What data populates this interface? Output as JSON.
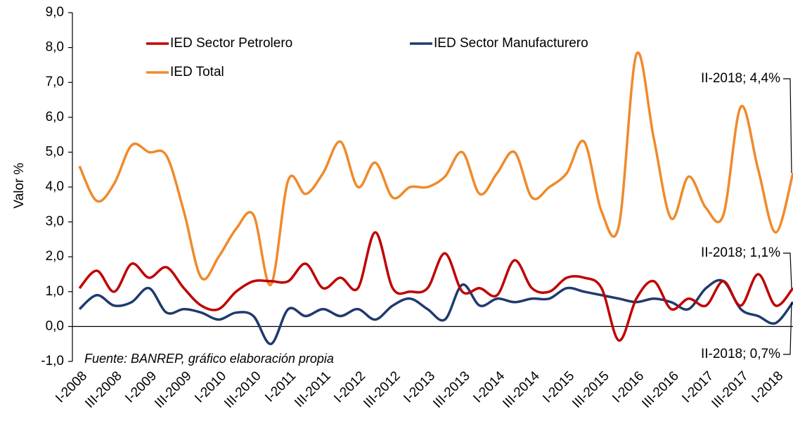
{
  "chart_data": {
    "type": "line",
    "y_label": "Valor %",
    "source": "Fuente: BANREP, gráfico elaboración propia",
    "categories": [
      "I-2008",
      null,
      "III-2008",
      null,
      "I-2009",
      null,
      "III-2009",
      null,
      "I-2010",
      null,
      "III-2010",
      null,
      "I-2011",
      null,
      "III-2011",
      null,
      "I-2012",
      null,
      "III-2012",
      null,
      "I-2013",
      null,
      "III-2013",
      null,
      "I-2014",
      null,
      "III-2014",
      null,
      "I-2015",
      null,
      "III-2015",
      null,
      "I-2016",
      null,
      "III-2016",
      null,
      "I-2017",
      null,
      "III-2017",
      null,
      "I-2018",
      null
    ],
    "series": [
      {
        "name": "IED Sector Petrolero",
        "color": "#c00000",
        "values": [
          1.1,
          1.6,
          1.0,
          1.8,
          1.4,
          1.7,
          1.1,
          0.6,
          0.5,
          1.0,
          1.3,
          1.3,
          1.3,
          1.8,
          1.1,
          1.4,
          1.1,
          2.7,
          1.1,
          1.0,
          1.1,
          2.1,
          1.0,
          1.1,
          0.9,
          1.9,
          1.1,
          1.0,
          1.4,
          1.4,
          1.1,
          -0.4,
          0.8,
          1.3,
          0.5,
          0.8,
          0.6,
          1.3,
          0.6,
          1.5,
          0.6,
          1.1
        ]
      },
      {
        "name": "IED Sector Manufacturero",
        "color": "#1f3a6e",
        "values": [
          0.5,
          0.9,
          0.6,
          0.7,
          1.1,
          0.4,
          0.5,
          0.4,
          0.2,
          0.4,
          0.3,
          -0.5,
          0.5,
          0.3,
          0.5,
          0.3,
          0.5,
          0.2,
          0.6,
          0.8,
          0.5,
          0.2,
          1.2,
          0.6,
          0.8,
          0.7,
          0.8,
          0.8,
          1.1,
          1.0,
          0.9,
          0.8,
          0.7,
          0.8,
          0.7,
          0.5,
          1.1,
          1.3,
          0.5,
          0.3,
          0.1,
          0.7
        ]
      },
      {
        "name": "IED Total",
        "color": "#ef8a2a",
        "values": [
          4.6,
          3.6,
          4.1,
          5.2,
          5.0,
          4.9,
          3.3,
          1.4,
          2.0,
          2.8,
          3.2,
          1.2,
          4.2,
          3.8,
          4.4,
          5.3,
          4.0,
          4.7,
          3.7,
          4.0,
          4.0,
          4.3,
          5.0,
          3.8,
          4.4,
          5.0,
          3.7,
          4.0,
          4.4,
          5.3,
          3.3,
          2.9,
          7.8,
          5.4,
          3.1,
          4.3,
          3.4,
          3.2,
          6.3,
          4.5,
          2.7,
          4.4
        ]
      }
    ],
    "annotations": [
      {
        "text": "II-2018; 4,4%"
      },
      {
        "text": "II-2018; 1,1%"
      },
      {
        "text": "II-2018; 0,7%"
      }
    ],
    "ylim": [
      -1,
      9
    ],
    "yticks": [
      {
        "value": -1,
        "label": "-1,0"
      },
      {
        "value": 0,
        "label": "0,0"
      },
      {
        "value": 1,
        "label": "1,0"
      },
      {
        "value": 2,
        "label": "2,0"
      },
      {
        "value": 3,
        "label": "3,0"
      },
      {
        "value": 4,
        "label": "4,0"
      },
      {
        "value": 5,
        "label": "5,0"
      },
      {
        "value": 6,
        "label": "6,0"
      },
      {
        "value": 7,
        "label": "7,0"
      },
      {
        "value": 8,
        "label": "8,0"
      },
      {
        "value": 9,
        "label": "9,0"
      }
    ],
    "grid": false,
    "legend": "top-left"
  }
}
